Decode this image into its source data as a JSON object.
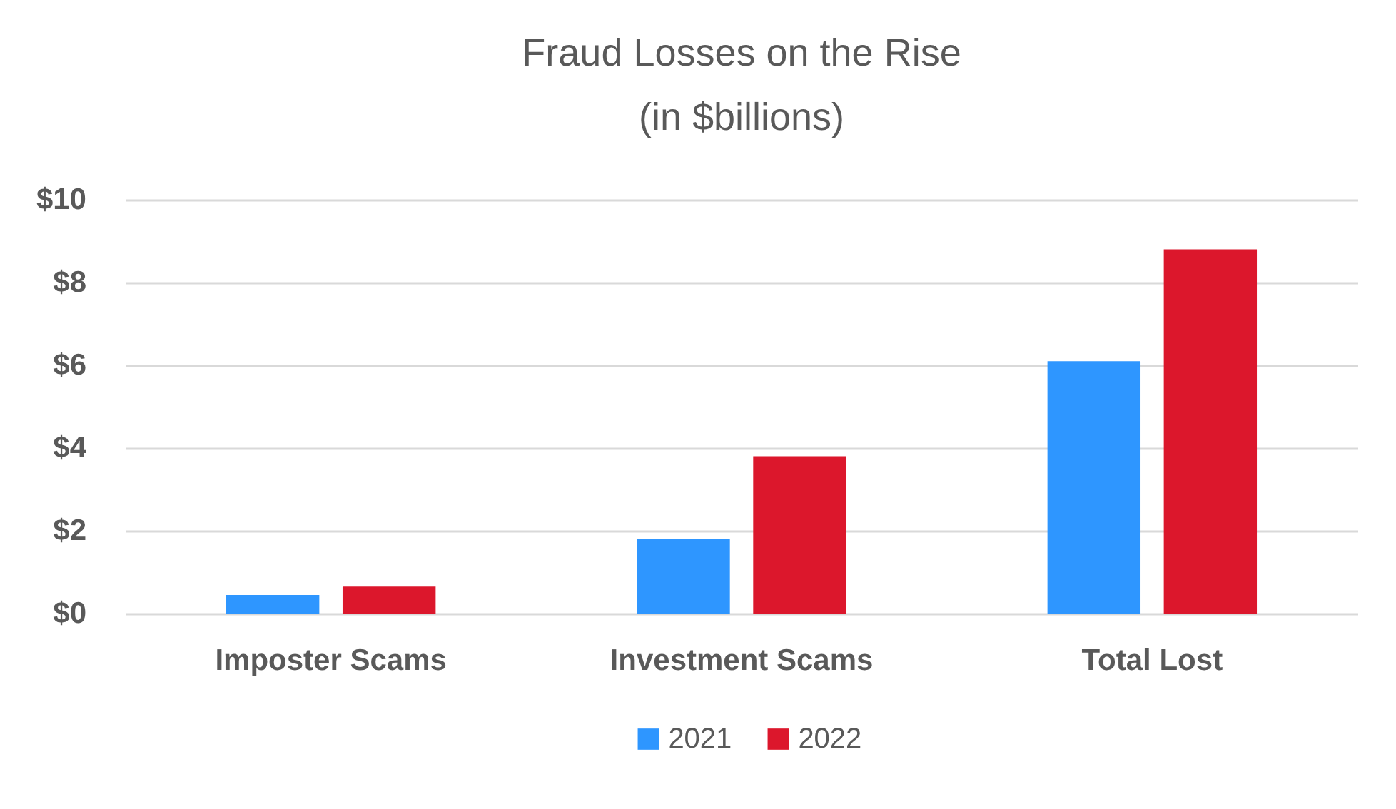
{
  "chart_data": {
    "type": "bar",
    "title": "Fraud Losses on the Rise",
    "subtitle": "(in $billions)",
    "categories": [
      "Imposter Scams",
      "Investment Scams",
      "Total Lost"
    ],
    "series": [
      {
        "name": "2021",
        "color": "#2e96ff",
        "values": [
          0.45,
          1.8,
          6.1
        ]
      },
      {
        "name": "2022",
        "color": "#dc172c",
        "values": [
          0.65,
          3.8,
          8.8
        ]
      }
    ],
    "ylim": [
      0,
      10
    ],
    "yticks": [
      {
        "value": 0,
        "label": "$0"
      },
      {
        "value": 2,
        "label": "$2"
      },
      {
        "value": 4,
        "label": "$4"
      },
      {
        "value": 6,
        "label": "$6"
      },
      {
        "value": 8,
        "label": "$8"
      },
      {
        "value": 10,
        "label": "$10"
      }
    ],
    "grid": "y",
    "legend": "bottom"
  }
}
